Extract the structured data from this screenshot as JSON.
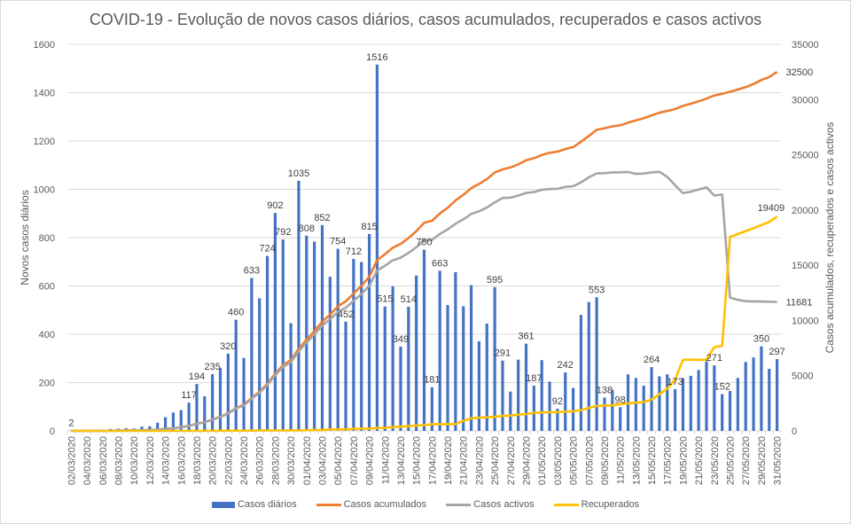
{
  "chart_data": {
    "type": "bar+line",
    "title": "COVID-19 - Evolução de novos casos diários, casos acumulados, recuperados e casos activos",
    "ylabel": "Novos casos diários",
    "y2label": "Casos acumulados, recuperados e casos activos",
    "ylim": [
      0,
      1600
    ],
    "y2lim": [
      0,
      35000
    ],
    "yticks": [
      "0",
      "200",
      "400",
      "600",
      "800",
      "1000",
      "1200",
      "1400",
      "1600"
    ],
    "y2ticks": [
      "0",
      "5000",
      "10000",
      "15000",
      "20000",
      "25000",
      "30000",
      "35000"
    ],
    "grid": true,
    "legend_position": "bottom",
    "start_date": "02/03/2020",
    "categories": [
      "02/03/2020",
      "03/03/2020",
      "04/03/2020",
      "05/03/2020",
      "06/03/2020",
      "07/03/2020",
      "08/03/2020",
      "09/03/2020",
      "10/03/2020",
      "11/03/2020",
      "12/03/2020",
      "13/03/2020",
      "14/03/2020",
      "15/03/2020",
      "16/03/2020",
      "17/03/2020",
      "18/03/2020",
      "19/03/2020",
      "20/03/2020",
      "21/03/2020",
      "22/03/2020",
      "23/03/2020",
      "24/03/2020",
      "25/03/2020",
      "26/03/2020",
      "27/03/2020",
      "28/03/2020",
      "29/03/2020",
      "30/03/2020",
      "31/03/2020",
      "01/04/2020",
      "02/04/2020",
      "03/04/2020",
      "04/04/2020",
      "05/04/2020",
      "06/04/2020",
      "07/04/2020",
      "08/04/2020",
      "09/04/2020",
      "10/04/2020",
      "11/04/2020",
      "12/04/2020",
      "13/04/2020",
      "14/04/2020",
      "15/04/2020",
      "16/04/2020",
      "17/04/2020",
      "18/04/2020",
      "19/04/2020",
      "20/04/2020",
      "21/04/2020",
      "22/04/2020",
      "23/04/2020",
      "24/04/2020",
      "25/04/2020",
      "26/04/2020",
      "27/04/2020",
      "28/04/2020",
      "29/04/2020",
      "30/04/2020",
      "01/05/2020",
      "02/05/2020",
      "03/05/2020",
      "04/05/2020",
      "05/05/2020",
      "06/05/2020",
      "07/05/2020",
      "08/05/2020",
      "09/05/2020",
      "10/05/2020",
      "11/05/2020",
      "12/05/2020",
      "13/05/2020",
      "14/05/2020",
      "15/05/2020",
      "16/05/2020",
      "17/05/2020",
      "18/05/2020",
      "19/05/2020",
      "20/05/2020",
      "21/05/2020",
      "22/05/2020",
      "23/05/2020",
      "24/05/2020",
      "25/05/2020",
      "26/05/2020",
      "27/05/2020",
      "28/05/2020",
      "29/05/2020",
      "30/05/2020",
      "31/05/2020"
    ],
    "xticks": [
      "02/03/2020",
      "04/03/2020",
      "06/03/2020",
      "08/03/2020",
      "10/03/2020",
      "12/03/2020",
      "14/03/2020",
      "16/03/2020",
      "18/03/2020",
      "20/03/2020",
      "22/03/2020",
      "24/03/2020",
      "26/03/2020",
      "28/03/2020",
      "30/03/2020",
      "01/04/2020",
      "03/04/2020",
      "05/04/2020",
      "07/04/2020",
      "09/04/2020",
      "11/04/2020",
      "13/04/2020",
      "15/04/2020",
      "17/04/2020",
      "19/04/2020",
      "21/04/2020",
      "23/04/2020",
      "25/04/2020",
      "27/04/2020",
      "29/04/2020",
      "01/05/2020",
      "03/05/2020",
      "05/05/2020",
      "07/05/2020",
      "09/05/2020",
      "11/05/2020",
      "13/05/2020",
      "15/05/2020",
      "17/05/2020",
      "19/05/2020",
      "21/05/2020",
      "23/05/2020",
      "25/05/2020",
      "27/05/2020",
      "29/05/2020",
      "31/05/2020"
    ],
    "series": [
      {
        "name": "Casos diários",
        "type": "bar",
        "axis": "left",
        "color": "#4472c4",
        "values": [
          2,
          0,
          2,
          1,
          4,
          8,
          9,
          11,
          10,
          18,
          19,
          34,
          57,
          76,
          86,
          117,
          194,
          143,
          235,
          260,
          320,
          460,
          302,
          633,
          549,
          724,
          902,
          792,
          446,
          1035,
          808,
          783,
          852,
          638,
          754,
          452,
          712,
          699,
          815,
          1516,
          515,
          598,
          349,
          514,
          643,
          750,
          181,
          663,
          521,
          657,
          516,
          603,
          371,
          444,
          595,
          291,
          163,
          295,
          361,
          187,
          293,
          204,
          92,
          242,
          178,
          480,
          533,
          553,
          138,
          170,
          98,
          234,
          219,
          187,
          264,
          226,
          234,
          173,
          219,
          228,
          252,
          288,
          271,
          152,
          165,
          219,
          285,
          304,
          350,
          257,
          297
        ],
        "labels": {
          "0": "2",
          "15": "117",
          "16": "194",
          "18": "235",
          "20": "320",
          "21": "460",
          "23": "633",
          "25": "724",
          "26": "902",
          "27": "792",
          "29": "1035",
          "30": "808",
          "32": "852",
          "34": "754",
          "35": "452",
          "36": "712",
          "38": "815",
          "39": "1516",
          "40": "515",
          "42": "349",
          "43": "514",
          "45": "750",
          "46": "181",
          "47": "663",
          "54": "595",
          "55": "291",
          "58": "361",
          "59": "187",
          "62": "92",
          "63": "242",
          "67": "553",
          "68": "138",
          "70": "98",
          "74": "264",
          "77": "173",
          "82": "271",
          "83": "152",
          "88": "350",
          "90": "297"
        }
      },
      {
        "name": "Casos acumulados",
        "type": "line",
        "axis": "right",
        "color": "#ed7d31",
        "values": [
          2,
          2,
          4,
          5,
          9,
          17,
          26,
          37,
          47,
          65,
          84,
          118,
          175,
          251,
          337,
          454,
          648,
          791,
          1026,
          1286,
          1606,
          2066,
          2368,
          2995,
          3544,
          4268,
          5170,
          5962,
          6408,
          7443,
          8251,
          9034,
          9886,
          10524,
          11278,
          11730,
          12442,
          13141,
          13956,
          15472,
          15987,
          16585,
          16934,
          17448,
          18091,
          18841,
          19022,
          19685,
          20206,
          20863,
          21379,
          21982,
          22353,
          22797,
          23392,
          23683,
          23846,
          24141,
          24502,
          24689,
          24982,
          25186,
          25278,
          25520,
          25698,
          26178,
          26711,
          27264,
          27402,
          27572,
          27670,
          27904,
          28122,
          28309,
          28573,
          28799,
          28970,
          29143,
          29432,
          29618,
          29838,
          30086,
          30367,
          30519,
          30709,
          30908,
          31123,
          31405,
          31774,
          32040,
          32500
        ],
        "end_label": "32500"
      },
      {
        "name": "Casos activos",
        "type": "line",
        "axis": "right",
        "color": "#a5a5a5",
        "values": [
          2,
          2,
          4,
          5,
          9,
          17,
          26,
          37,
          47,
          65,
          84,
          118,
          175,
          248,
          332,
          449,
          640,
          780,
          1011,
          1262,
          1573,
          2020,
          2310,
          2922,
          3452,
          4156,
          5037,
          5797,
          6217,
          7217,
          7986,
          8742,
          9532,
          10115,
          10784,
          11150,
          11770,
          12398,
          13133,
          14522,
          14946,
          15443,
          15685,
          16113,
          16637,
          17238,
          17282,
          17832,
          18240,
          18760,
          19156,
          19640,
          19884,
          20225,
          20687,
          21093,
          21120,
          21305,
          21556,
          21630,
          21827,
          21903,
          21927,
          22093,
          22145,
          22504,
          22958,
          23314,
          23333,
          23411,
          23416,
          23446,
          23268,
          23299,
          23406,
          23460,
          22998,
          22243,
          21520,
          21657,
          21848,
          22060,
          21312,
          21391,
          12070,
          11867,
          11746,
          11732,
          11710,
          11696,
          11681
        ],
        "end_label": "11681"
      },
      {
        "name": "Recuperados",
        "type": "line",
        "axis": "right",
        "color": "#ffc000",
        "values": [
          0,
          0,
          0,
          0,
          0,
          0,
          0,
          0,
          0,
          0,
          0,
          0,
          0,
          3,
          3,
          3,
          5,
          5,
          5,
          5,
          14,
          14,
          14,
          22,
          43,
          43,
          43,
          43,
          43,
          43,
          68,
          75,
          75,
          140,
          140,
          140,
          184,
          196,
          205,
          266,
          277,
          347,
          383,
          433,
          493,
          519,
          610,
          610,
          610,
          610,
          917,
          1143,
          1201,
          1228,
          1277,
          1357,
          1389,
          1470,
          1519,
          1647,
          1671,
          1689,
          1712,
          1743,
          1772,
          1876,
          2076,
          2258,
          2293,
          2309,
          2422,
          2499,
          2549,
          2614,
          2834,
          3328,
          3822,
          4636,
          6431,
          6452,
          6430,
          6452,
          7590,
          7705,
          17549,
          17822,
          18096,
          18349,
          18637,
          18911,
          19409
        ],
        "end_label": "19409"
      }
    ]
  },
  "legend": [
    {
      "label": "Casos diários",
      "kind": "bar",
      "color": "#4472c4"
    },
    {
      "label": "Casos acumulados",
      "kind": "line",
      "color": "#ed7d31"
    },
    {
      "label": "Casos activos",
      "kind": "line",
      "color": "#a5a5a5"
    },
    {
      "label": "Recuperados",
      "kind": "line",
      "color": "#ffc000"
    }
  ]
}
